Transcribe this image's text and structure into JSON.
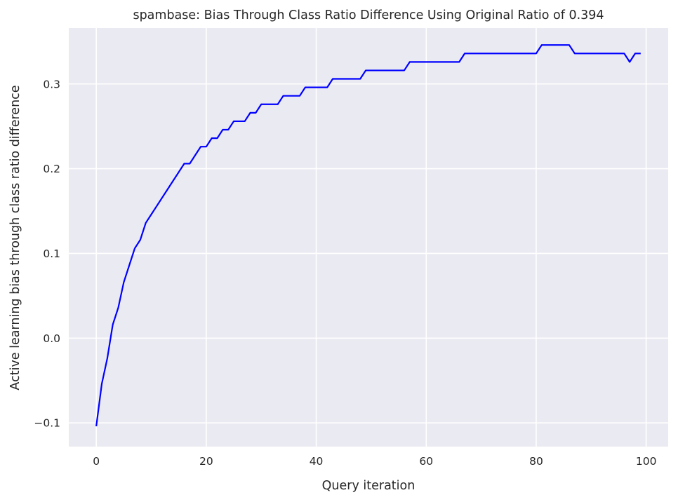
{
  "chart_data": {
    "type": "line",
    "title": "spambase: Bias Through Class Ratio Difference Using Original Ratio of 0.394",
    "xlabel": "Query iteration",
    "ylabel": "Active learning bias through class ratio difference",
    "xlim": [
      -5,
      104
    ],
    "ylim": [
      -0.128,
      0.366
    ],
    "xticks": [
      0,
      20,
      40,
      60,
      80,
      100
    ],
    "xtick_labels": [
      "0",
      "20",
      "40",
      "60",
      "80",
      "100"
    ],
    "yticks": [
      -0.1,
      0.0,
      0.1,
      0.2,
      0.3
    ],
    "ytick_labels": [
      "−0.1",
      "0.0",
      "0.1",
      "0.2",
      "0.3"
    ],
    "grid": true,
    "background": "#eaeaf2",
    "grid_color": "#ffffff",
    "line_color": "#0000ff",
    "series": [
      {
        "x": [
          0,
          1,
          2,
          3,
          4,
          5,
          6,
          7,
          8,
          9,
          10,
          11,
          12,
          13,
          14,
          15,
          16,
          17,
          18,
          19,
          20,
          21,
          22,
          23,
          24,
          25,
          26,
          27,
          28,
          29,
          30,
          31,
          32,
          33,
          34,
          35,
          36,
          37,
          38,
          39,
          40,
          41,
          42,
          43,
          44,
          45,
          46,
          47,
          48,
          49,
          50,
          51,
          52,
          53,
          54,
          55,
          56,
          57,
          58,
          59,
          60,
          61,
          62,
          63,
          64,
          65,
          66,
          67,
          68,
          69,
          70,
          71,
          72,
          73,
          74,
          75,
          76,
          77,
          78,
          79,
          80,
          81,
          82,
          83,
          84,
          85,
          86,
          87,
          88,
          89,
          90,
          91,
          92,
          93,
          94,
          95,
          96,
          97,
          98,
          99
        ],
        "values": [
          -0.104,
          -0.054,
          -0.024,
          0.016,
          0.036,
          0.066,
          0.086,
          0.106,
          0.116,
          0.136,
          0.146,
          0.156,
          0.166,
          0.176,
          0.186,
          0.196,
          0.206,
          0.206,
          0.216,
          0.226,
          0.226,
          0.236,
          0.236,
          0.246,
          0.246,
          0.256,
          0.256,
          0.256,
          0.266,
          0.266,
          0.276,
          0.276,
          0.276,
          0.276,
          0.286,
          0.286,
          0.286,
          0.286,
          0.296,
          0.296,
          0.296,
          0.296,
          0.296,
          0.306,
          0.306,
          0.306,
          0.306,
          0.306,
          0.306,
          0.316,
          0.316,
          0.316,
          0.316,
          0.316,
          0.316,
          0.316,
          0.316,
          0.326,
          0.326,
          0.326,
          0.326,
          0.326,
          0.326,
          0.326,
          0.326,
          0.326,
          0.326,
          0.336,
          0.336,
          0.336,
          0.336,
          0.336,
          0.336,
          0.336,
          0.336,
          0.336,
          0.336,
          0.336,
          0.336,
          0.336,
          0.336,
          0.346,
          0.346,
          0.346,
          0.346,
          0.346,
          0.346,
          0.336,
          0.336,
          0.336,
          0.336,
          0.336,
          0.336,
          0.336,
          0.336,
          0.336,
          0.336,
          0.326,
          0.336,
          0.336
        ]
      }
    ]
  }
}
